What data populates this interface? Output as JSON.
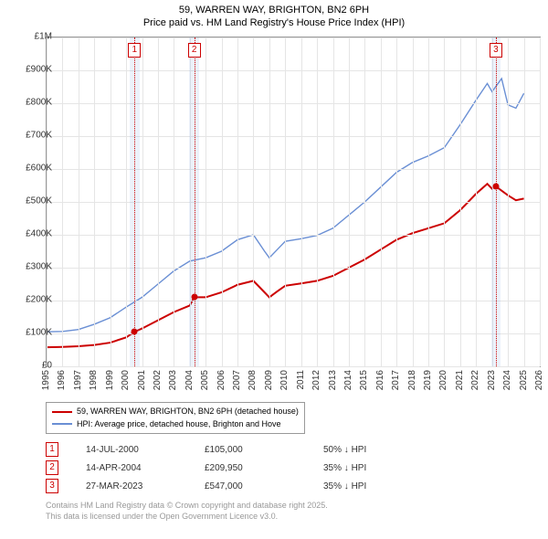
{
  "title_line1": "59, WARREN WAY, BRIGHTON, BN2 6PH",
  "title_line2": "Price paid vs. HM Land Registry's House Price Index (HPI)",
  "chart": {
    "xlim": [
      1995,
      2026
    ],
    "ylim": [
      0,
      1000000
    ],
    "ytick_step": 100000,
    "ylabels": [
      "£0",
      "£100K",
      "£200K",
      "£300K",
      "£400K",
      "£500K",
      "£600K",
      "£700K",
      "£800K",
      "£900K",
      "£1M"
    ],
    "xticks": [
      1995,
      1996,
      1997,
      1998,
      1999,
      2000,
      2001,
      2002,
      2003,
      2004,
      2005,
      2006,
      2007,
      2008,
      2009,
      2010,
      2011,
      2012,
      2013,
      2014,
      2015,
      2016,
      2017,
      2018,
      2019,
      2020,
      2021,
      2022,
      2023,
      2024,
      2025,
      2026
    ],
    "grid_color": "#e5e5e5",
    "background": "#ffffff",
    "series": {
      "property": {
        "color": "#cc0000",
        "width": 2,
        "label": "59, WARREN WAY, BRIGHTON, BN2 6PH (detached house)",
        "points": [
          [
            1995.0,
            58000
          ],
          [
            1996.0,
            59000
          ],
          [
            1997.0,
            61000
          ],
          [
            1998.0,
            65000
          ],
          [
            1999.0,
            72000
          ],
          [
            2000.0,
            88000
          ],
          [
            2000.53,
            105000
          ],
          [
            2001.0,
            115000
          ],
          [
            2002.0,
            140000
          ],
          [
            2003.0,
            165000
          ],
          [
            2004.0,
            185000
          ],
          [
            2004.28,
            209950
          ],
          [
            2005.0,
            210000
          ],
          [
            2006.0,
            225000
          ],
          [
            2007.0,
            248000
          ],
          [
            2008.0,
            260000
          ],
          [
            2008.7,
            225000
          ],
          [
            2009.0,
            210000
          ],
          [
            2009.5,
            228000
          ],
          [
            2010.0,
            245000
          ],
          [
            2011.0,
            252000
          ],
          [
            2012.0,
            260000
          ],
          [
            2013.0,
            275000
          ],
          [
            2014.0,
            300000
          ],
          [
            2015.0,
            325000
          ],
          [
            2016.0,
            355000
          ],
          [
            2017.0,
            385000
          ],
          [
            2018.0,
            405000
          ],
          [
            2019.0,
            420000
          ],
          [
            2020.0,
            435000
          ],
          [
            2021.0,
            475000
          ],
          [
            2022.0,
            525000
          ],
          [
            2022.7,
            555000
          ],
          [
            2023.0,
            540000
          ],
          [
            2023.24,
            547000
          ],
          [
            2024.0,
            520000
          ],
          [
            2024.5,
            505000
          ],
          [
            2025.0,
            510000
          ]
        ]
      },
      "hpi": {
        "color": "#6a8fd4",
        "width": 1.4,
        "label": "HPI: Average price, detached house, Brighton and Hove",
        "points": [
          [
            1995.0,
            105000
          ],
          [
            1996.0,
            106000
          ],
          [
            1997.0,
            112000
          ],
          [
            1998.0,
            128000
          ],
          [
            1999.0,
            148000
          ],
          [
            2000.0,
            180000
          ],
          [
            2001.0,
            210000
          ],
          [
            2002.0,
            250000
          ],
          [
            2003.0,
            290000
          ],
          [
            2004.0,
            320000
          ],
          [
            2005.0,
            330000
          ],
          [
            2006.0,
            350000
          ],
          [
            2007.0,
            385000
          ],
          [
            2008.0,
            400000
          ],
          [
            2008.7,
            350000
          ],
          [
            2009.0,
            330000
          ],
          [
            2009.5,
            355000
          ],
          [
            2010.0,
            380000
          ],
          [
            2011.0,
            388000
          ],
          [
            2012.0,
            398000
          ],
          [
            2013.0,
            420000
          ],
          [
            2014.0,
            460000
          ],
          [
            2015.0,
            500000
          ],
          [
            2016.0,
            545000
          ],
          [
            2017.0,
            590000
          ],
          [
            2018.0,
            620000
          ],
          [
            2019.0,
            640000
          ],
          [
            2020.0,
            665000
          ],
          [
            2021.0,
            735000
          ],
          [
            2022.0,
            810000
          ],
          [
            2022.7,
            860000
          ],
          [
            2023.0,
            835000
          ],
          [
            2023.6,
            875000
          ],
          [
            2024.0,
            795000
          ],
          [
            2024.5,
            785000
          ],
          [
            2025.0,
            830000
          ]
        ]
      }
    },
    "markers": [
      {
        "num": "1",
        "year": 2000.53,
        "color": "#cc0000",
        "band_width": 0.6
      },
      {
        "num": "2",
        "year": 2004.28,
        "color": "#cc0000",
        "band_width": 0.6
      },
      {
        "num": "3",
        "year": 2023.24,
        "color": "#cc0000",
        "band_width": 0.6
      }
    ],
    "sales_dots": [
      {
        "year": 2000.53,
        "value": 105000,
        "color": "#cc0000"
      },
      {
        "year": 2004.28,
        "value": 209950,
        "color": "#cc0000"
      },
      {
        "year": 2023.24,
        "value": 547000,
        "color": "#cc0000"
      }
    ]
  },
  "sales_table": [
    {
      "num": "1",
      "color": "#cc0000",
      "date": "14-JUL-2000",
      "price": "£105,000",
      "diff": "50% ↓ HPI"
    },
    {
      "num": "2",
      "color": "#cc0000",
      "date": "14-APR-2004",
      "price": "£209,950",
      "diff": "35% ↓ HPI"
    },
    {
      "num": "3",
      "color": "#cc0000",
      "date": "27-MAR-2023",
      "price": "£547,000",
      "diff": "35% ↓ HPI"
    }
  ],
  "attribution_line1": "Contains HM Land Registry data © Crown copyright and database right 2025.",
  "attribution_line2": "This data is licensed under the Open Government Licence v3.0."
}
